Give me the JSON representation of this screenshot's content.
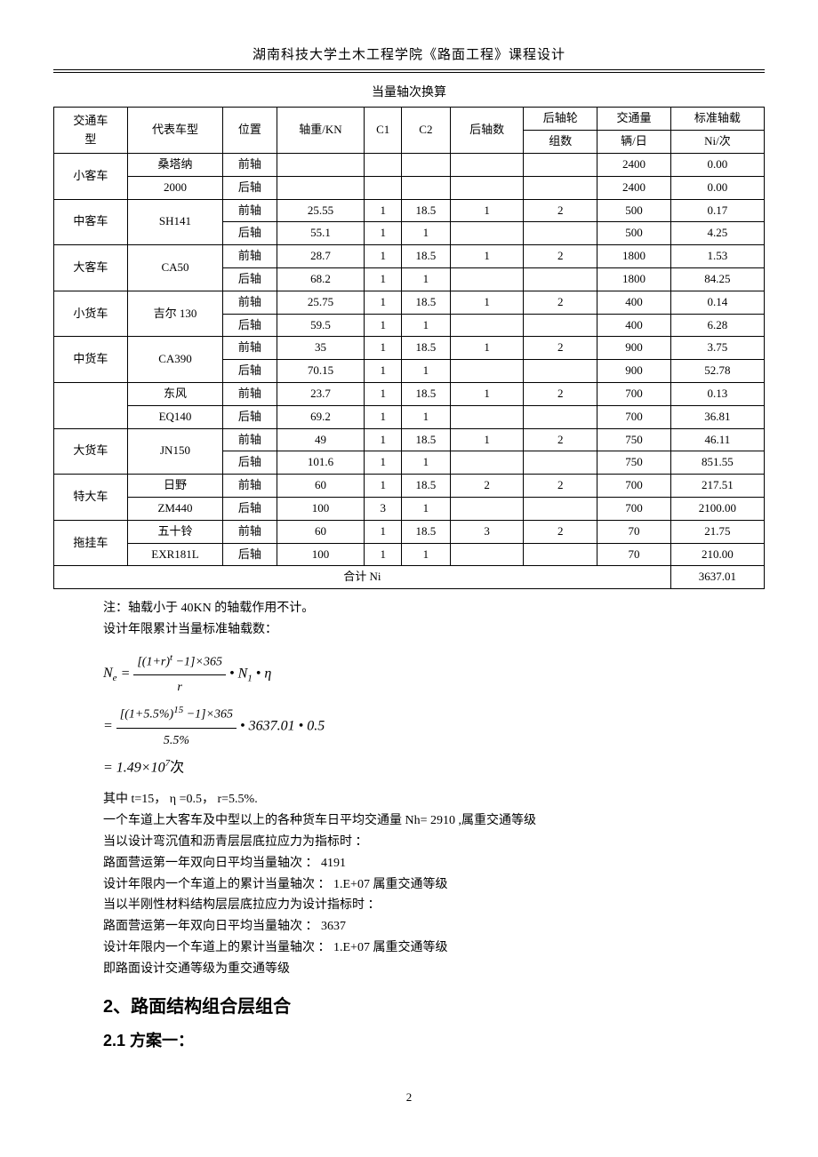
{
  "header": "湖南科技大学土木工程学院《路面工程》课程设计",
  "table_title": "当量轴次换算",
  "columns": [
    "交通车型",
    "代表车型",
    "位置",
    "轴重/KN",
    "C1",
    "C2",
    "后轴数",
    "后轴轮组数",
    "交通量 辆/日",
    "标准轴载 Ni/次"
  ],
  "col_top": {
    "c0": "交通车",
    "c0b": "型",
    "c1": "代表车型",
    "c2": "位置",
    "c3": "轴重/KN",
    "c4": "C1",
    "c5": "C2",
    "c6": "后轴数",
    "c7a": "后轴轮",
    "c7b": "组数",
    "c8a": "交通量",
    "c8b": "辆/日",
    "c9a": "标准轴载",
    "c9b": "Ni/次"
  },
  "rows": [
    {
      "cat": "小客车",
      "model": "桑塔纳2000",
      "modelA": "桑塔纳",
      "modelB": "2000",
      "front": {
        "pos": "前轴",
        "wt": "",
        "c1": "",
        "c2": "",
        "rear_n": "",
        "rear_g": "",
        "vol": "2400",
        "ni": "0.00"
      },
      "rear": {
        "pos": "后轴",
        "wt": "",
        "c1": "",
        "c2": "",
        "rear_n": "",
        "rear_g": "",
        "vol": "2400",
        "ni": "0.00"
      }
    },
    {
      "cat": "中客车",
      "model": "SH141",
      "front": {
        "pos": "前轴",
        "wt": "25.55",
        "c1": "1",
        "c2": "18.5",
        "rear_n": "1",
        "rear_g": "2",
        "vol": "500",
        "ni": "0.17"
      },
      "rear": {
        "pos": "后轴",
        "wt": "55.1",
        "c1": "1",
        "c2": "1",
        "rear_n": "",
        "rear_g": "",
        "vol": "500",
        "ni": "4.25"
      }
    },
    {
      "cat": "大客车",
      "model": "CA50",
      "front": {
        "pos": "前轴",
        "wt": "28.7",
        "c1": "1",
        "c2": "18.5",
        "rear_n": "1",
        "rear_g": "2",
        "vol": "1800",
        "ni": "1.53"
      },
      "rear": {
        "pos": "后轴",
        "wt": "68.2",
        "c1": "1",
        "c2": "1",
        "rear_n": "",
        "rear_g": "",
        "vol": "1800",
        "ni": "84.25"
      }
    },
    {
      "cat": "小货车",
      "model": "吉尔 130",
      "front": {
        "pos": "前轴",
        "wt": "25.75",
        "c1": "1",
        "c2": "18.5",
        "rear_n": "1",
        "rear_g": "2",
        "vol": "400",
        "ni": "0.14"
      },
      "rear": {
        "pos": "后轴",
        "wt": "59.5",
        "c1": "1",
        "c2": "1",
        "rear_n": "",
        "rear_g": "",
        "vol": "400",
        "ni": "6.28"
      }
    },
    {
      "cat": "中货车",
      "model": "CA390",
      "front": {
        "pos": "前轴",
        "wt": "35",
        "c1": "1",
        "c2": "18.5",
        "rear_n": "1",
        "rear_g": "2",
        "vol": "900",
        "ni": "3.75"
      },
      "rear": {
        "pos": "后轴",
        "wt": "70.15",
        "c1": "1",
        "c2": "1",
        "rear_n": "",
        "rear_g": "",
        "vol": "900",
        "ni": "52.78"
      }
    },
    {
      "cat": "",
      "model": "东风EQ140",
      "modelA": "东风",
      "modelB": "EQ140",
      "front": {
        "pos": "前轴",
        "wt": "23.7",
        "c1": "1",
        "c2": "18.5",
        "rear_n": "1",
        "rear_g": "2",
        "vol": "700",
        "ni": "0.13"
      },
      "rear": {
        "pos": "后轴",
        "wt": "69.2",
        "c1": "1",
        "c2": "1",
        "rear_n": "",
        "rear_g": "",
        "vol": "700",
        "ni": "36.81"
      }
    },
    {
      "cat": "大货车",
      "model": "JN150",
      "front": {
        "pos": "前轴",
        "wt": "49",
        "c1": "1",
        "c2": "18.5",
        "rear_n": "1",
        "rear_g": "2",
        "vol": "750",
        "ni": "46.11"
      },
      "rear": {
        "pos": "后轴",
        "wt": "101.6",
        "c1": "1",
        "c2": "1",
        "rear_n": "",
        "rear_g": "",
        "vol": "750",
        "ni": "851.55"
      }
    },
    {
      "cat": "特大车",
      "model": "日野ZM440",
      "modelA": "日野",
      "modelB": "ZM440",
      "front": {
        "pos": "前轴",
        "wt": "60",
        "c1": "1",
        "c2": "18.5",
        "rear_n": "2",
        "rear_g": "2",
        "vol": "700",
        "ni": "217.51"
      },
      "rear": {
        "pos": "后轴",
        "wt": "100",
        "c1": "3",
        "c2": "1",
        "rear_n": "",
        "rear_g": "",
        "vol": "700",
        "ni": "2100.00"
      }
    },
    {
      "cat": "拖挂车",
      "model": "五十铃EXR181L",
      "modelA": "五十铃",
      "modelB": "EXR181L",
      "front": {
        "pos": "前轴",
        "wt": "60",
        "c1": "1",
        "c2": "18.5",
        "rear_n": "3",
        "rear_g": "2",
        "vol": "70",
        "ni": "21.75"
      },
      "rear": {
        "pos": "后轴",
        "wt": "100",
        "c1": "1",
        "c2": "1",
        "rear_n": "",
        "rear_g": "",
        "vol": "70",
        "ni": "210.00"
      }
    }
  ],
  "total_label": "合计 Ni",
  "total_value": "3637.01",
  "note": "注：轴载小于 40KN 的轴载作用不计。",
  "line2": "设计年限累计当量标准轴载数：",
  "formula": {
    "result": "= 1.49×10⁷次"
  },
  "params": "其中 t=15， η =0.5， r=5.5%.",
  "p1": "一个车道上大客车及中型以上的各种货车日平均交通量 Nh= 2910 ,属重交通等级",
  "p2": "当以设计弯沉值和沥青层层底拉应力为指标时 ：",
  "p3": "路面营运第一年双向日平均当量轴次 ： 4191",
  "p4": "设计年限内一个车道上的累计当量轴次 ： 1.E+07 属重交通等级",
  "p5": "当以半刚性材料结构层层底拉应力为设计指标时 ：",
  "p6": "路面营运第一年双向日平均当量轴次 ： 3637",
  "p7": "设计年限内一个车道上的累计当量轴次 ： 1.E+07 属重交通等级",
  "p8": "即路面设计交通等级为重交通等级",
  "section2": "2、路面结构组合层组合",
  "section21": "2.1 方案一：",
  "page": "2"
}
